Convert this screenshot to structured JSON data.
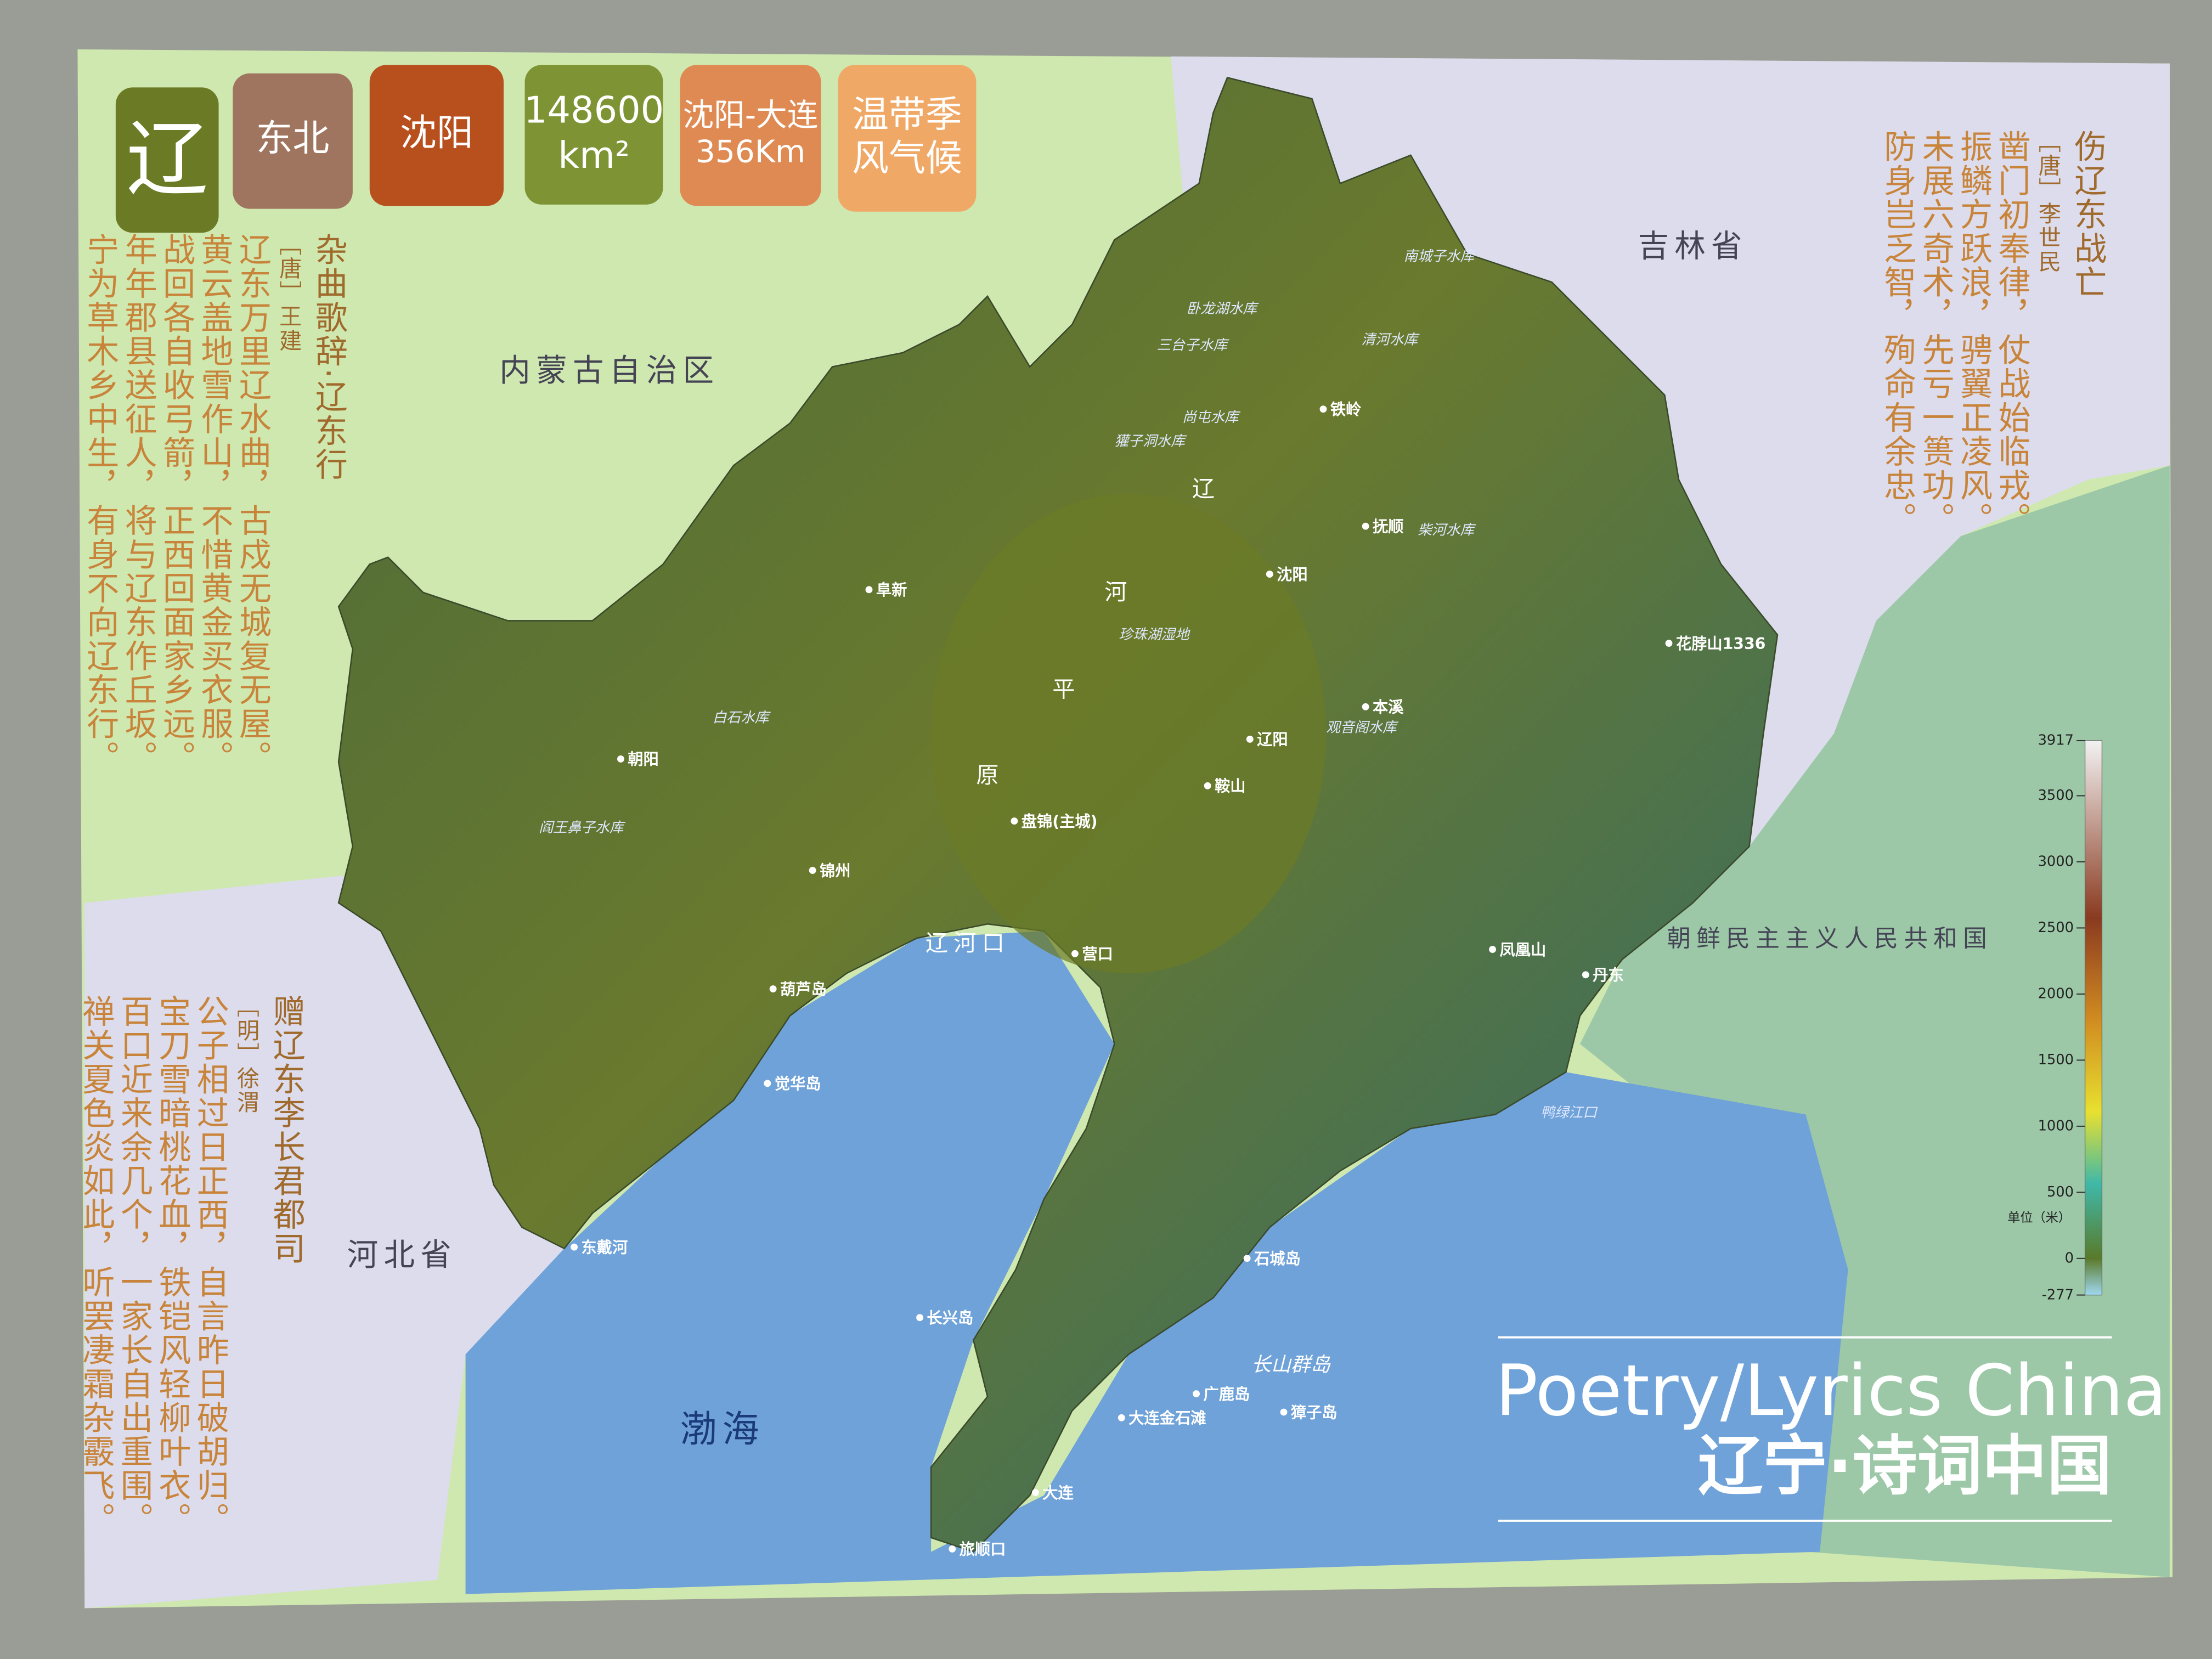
{
  "badges": [
    [
      "辽"
    ],
    [
      "东北"
    ],
    [
      "沈阳"
    ],
    [
      "148600",
      "km²"
    ],
    [
      "沈阳-大连",
      "356Km"
    ],
    [
      "温带季",
      "风气候"
    ]
  ],
  "poems": [
    {
      "title": "杂曲歌辞·辽东行",
      "author": "［唐］王建",
      "lines": [
        "辽东万里辽水曲，古戍无城复无屋。",
        "黄云盖地雪作山，不惜黄金买衣服。",
        "战回各自收弓箭，正西回面家乡远。",
        "年年郡县送征人，将与辽东作丘坂。",
        "宁为草木乡中生，有身不向辽东行。"
      ]
    },
    {
      "title": "赠辽东李长君都司",
      "author": "［明］徐渭",
      "lines": [
        "公子相过日正西，自言昨日破胡归。",
        "宝刀雪暗桃花血，铁铠风轻柳叶衣。",
        "百口近来余几个，一家长自出重围。",
        "禅关夏色炎如此，听罢凄霜杂霰飞。"
      ]
    },
    {
      "title": "伤辽东战亡",
      "author": "［唐］李世民",
      "lines": [
        "凿门初奉律，仗战始临戎。",
        "振鳞方跃浪，骋翼正凌风。",
        "未展六奇术，先亏一篑功。",
        "防身岂乏智，殉命有余忠。"
      ]
    }
  ],
  "regions": [
    "内蒙古自治区",
    "吉林省",
    "河北省",
    "朝鲜民主主义人民共和国",
    "渤海",
    "辽河口"
  ],
  "plain_labels": [
    "辽",
    "河",
    "平",
    "原"
  ],
  "cities": [
    "铁岭",
    "抚顺",
    "沈阳",
    "阜新",
    "本溪",
    "辽阳",
    "鞍山",
    "朝阳",
    "盘锦(主城)",
    "锦州",
    "营口",
    "葫芦岛",
    "凤凰山",
    "丹东",
    "觉华岛",
    "东戴河",
    "石城岛",
    "长兴岛",
    "广鹿岛",
    "獐子岛",
    "大连金石滩",
    "大连",
    "旅顺口",
    "花脖山1336"
  ],
  "waters": [
    "南城子水库",
    "卧龙湖水库",
    "清河水库",
    "三台子水库",
    "尚屯水库",
    "獾子洞水库",
    "柴河水库",
    "珍珠湖湿地",
    "白石水库",
    "阎王鼻子水库",
    "观音阁水库",
    "长山群岛",
    "鸭绿江口"
  ],
  "elevation_legend": {
    "ticks": [
      3917,
      3500,
      3000,
      2500,
      2000,
      1500,
      1000,
      500,
      0,
      -277
    ],
    "unit": "单位（米）"
  },
  "title": {
    "en": "Poetry/Lyrics China",
    "zh": "辽宁·诗词中国"
  }
}
